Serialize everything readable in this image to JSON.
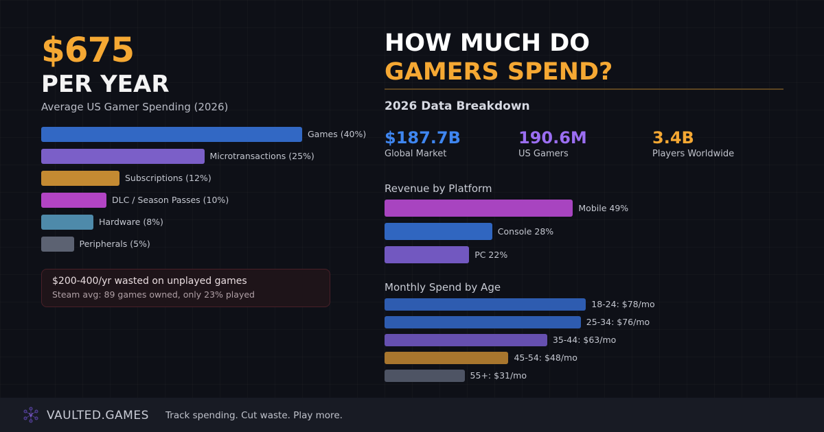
{
  "hero": {
    "amount": "$675",
    "period": "PER YEAR",
    "subtitle": "Average US Gamer Spending (2026)"
  },
  "spending": [
    {
      "label": "Games (40%)",
      "pct": 40,
      "color": "#3268c4"
    },
    {
      "label": "Microtransactions (25%)",
      "pct": 25,
      "color": "#7b5fc8"
    },
    {
      "label": "Subscriptions (12%)",
      "pct": 12,
      "color": "#c48a32"
    },
    {
      "label": "DLC / Season Passes (10%)",
      "pct": 10,
      "color": "#b244c4"
    },
    {
      "label": "Hardware (8%)",
      "pct": 8,
      "color": "#4e8aaa"
    },
    {
      "label": "Peripherals (5%)",
      "pct": 5,
      "color": "#5c6272"
    }
  ],
  "alert": {
    "title": "$200-400/yr wasted on unplayed games",
    "detail": "Steam avg: 89 games owned, only 23% played"
  },
  "headline": {
    "line1": "HOW MUCH DO",
    "line2": "GAMERS SPEND?"
  },
  "breakdown_title": "2026 Data Breakdown",
  "stats": [
    {
      "value": "$187.7B",
      "label": "Global Market",
      "color": "#3f86f0"
    },
    {
      "value": "190.6M",
      "label": "US Gamers",
      "color": "#9b6ef2"
    },
    {
      "value": "3.4B",
      "label": "Players Worldwide",
      "color": "#f5a833"
    }
  ],
  "platform": {
    "title": "Revenue by Platform",
    "items": [
      {
        "label": "Mobile 49%",
        "pct": 49,
        "color": "#a844c0"
      },
      {
        "label": "Console 28%",
        "pct": 28,
        "color": "#3066c0"
      },
      {
        "label": "PC 22%",
        "pct": 22,
        "color": "#7258c0"
      }
    ]
  },
  "age": {
    "title": "Monthly Spend by Age",
    "items": [
      {
        "label": "18-24: $78/mo",
        "value": 78,
        "color": "#2e5cb0"
      },
      {
        "label": "25-34: $76/mo",
        "value": 76,
        "color": "#2e5cb0"
      },
      {
        "label": "35-44: $63/mo",
        "value": 63,
        "color": "#6650b0"
      },
      {
        "label": "45-54: $48/mo",
        "value": 48,
        "color": "#a8762e"
      },
      {
        "label": "55+: $31/mo",
        "value": 31,
        "color": "#4e5464"
      }
    ]
  },
  "footer": {
    "brand": "VAULTED.GAMES",
    "tagline": "Track spending. Cut waste. Play more."
  }
}
